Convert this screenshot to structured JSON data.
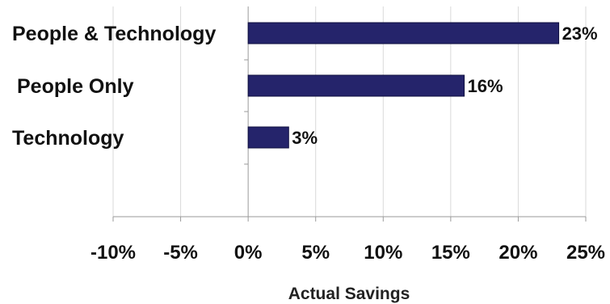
{
  "chart_data": {
    "type": "bar",
    "orientation": "horizontal",
    "categories": [
      "People & Technology",
      "People Only",
      "Technology"
    ],
    "values": [
      23,
      16,
      3
    ],
    "data_labels": [
      "23%",
      "16%",
      "3%"
    ],
    "title": "",
    "xlabel": "Actual Savings",
    "ylabel": "",
    "xlim": [
      -10,
      25
    ],
    "x_ticks": [
      -10,
      -5,
      0,
      5,
      10,
      15,
      20,
      25
    ],
    "x_tick_labels": [
      "-10%",
      "-5%",
      "0%",
      "5%",
      "10%",
      "15%",
      "20%",
      "25%"
    ],
    "grid": "vertical",
    "legend": "none",
    "colors": {
      "bar": "#25246b",
      "bar_edge": "#0f0f3f",
      "grid": "#d9d9d9",
      "axis": "#9a9a9a"
    }
  }
}
